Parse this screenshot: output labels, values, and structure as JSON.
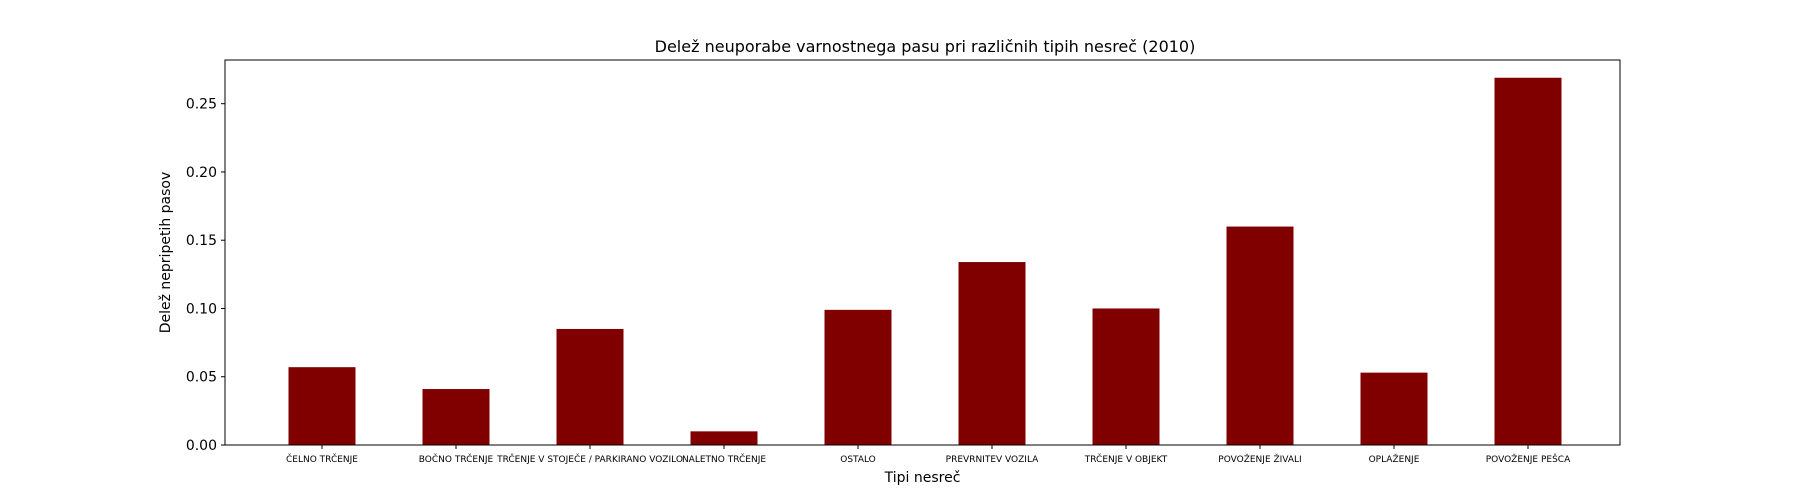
{
  "chart_data": {
    "type": "bar",
    "title": "Delež neuporabe varnostnega pasu pri različnih tipih nesreč (2010)",
    "xlabel": "Tipi nesreč",
    "ylabel": "Delež nepripetih pasov",
    "categories": [
      "ČELNO TRČENJE",
      "BOČNO TRČENJE",
      "TRČENJE V STOJEČE / PARKIRANO VOZILO",
      "NALETNO TRČENJE",
      "OSTALO",
      "PREVRNITEV VOZILA",
      "TRČENJE V OBJEKT",
      "POVOŽENJE ŽIVALI",
      "OPLAŽENJE",
      "POVOŽENJE PEŠCA"
    ],
    "values": [
      0.057,
      0.041,
      0.085,
      0.01,
      0.099,
      0.134,
      0.1,
      0.16,
      0.053,
      0.269
    ],
    "ylim": [
      0,
      0.282
    ],
    "yticks": [
      0.0,
      0.05,
      0.1,
      0.15,
      0.2,
      0.25
    ],
    "ytick_labels": [
      "0.00",
      "0.05",
      "0.10",
      "0.15",
      "0.20",
      "0.25"
    ],
    "bar_color": "#800000",
    "grid": false,
    "legend": "none"
  }
}
